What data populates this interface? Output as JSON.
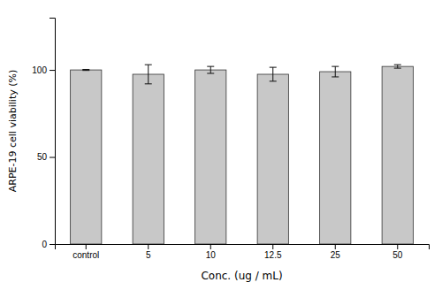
{
  "chart_data": {
    "type": "bar",
    "categories": [
      "control",
      "5",
      "10",
      "12.5",
      "25",
      "50"
    ],
    "values": [
      100.0,
      97.5,
      100.0,
      97.5,
      99.0,
      102.0
    ],
    "errors": [
      0.3,
      5.5,
      2.0,
      4.0,
      3.0,
      1.0
    ],
    "color": "#c8c8c8",
    "xlabel": "Conc. (ug / mL)",
    "ylabel": "ARPE-19 cell viability (%)",
    "ylim": [
      0,
      130
    ],
    "yticks": [
      0,
      50,
      100
    ]
  }
}
